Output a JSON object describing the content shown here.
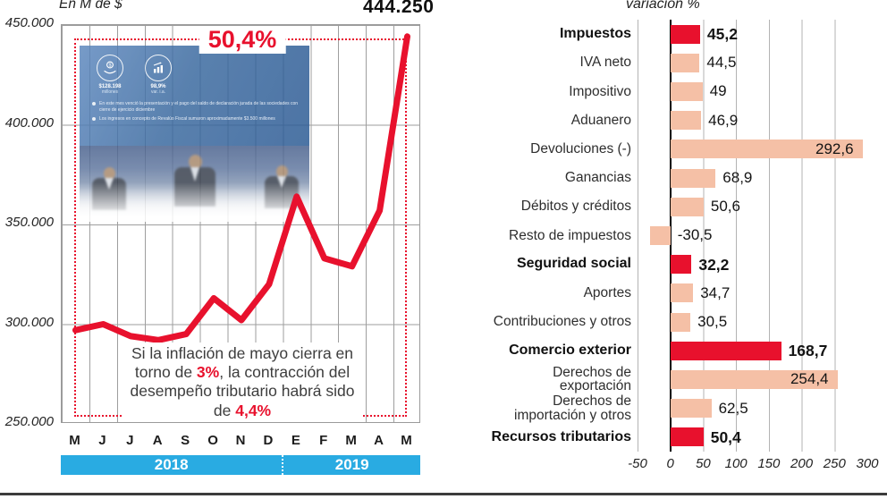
{
  "chart_data": [
    {
      "type": "line",
      "unit_label": "En M de $",
      "peak_value_label": "444.250",
      "growth_label": "50,4%",
      "x_months": [
        "M",
        "J",
        "J",
        "A",
        "S",
        "O",
        "N",
        "D",
        "E",
        "F",
        "M",
        "A",
        "M"
      ],
      "year_bands": [
        {
          "label": "2018",
          "span": 8
        },
        {
          "label": "2019",
          "span": 5
        }
      ],
      "values": [
        297000,
        300000,
        294000,
        292000,
        295000,
        313000,
        302000,
        320000,
        364000,
        333000,
        329000,
        357000,
        444250
      ],
      "ylim": [
        250000,
        450000
      ],
      "ytick_labels": [
        "450.000",
        "400.000",
        "350.000",
        "300.000",
        "250.000"
      ],
      "line_color": "#e8112d",
      "band_color": "#29abe2",
      "annotation_parts": [
        {
          "text": "Si la inflación de mayo cierra en",
          "br": true
        },
        {
          "text": "torno de "
        },
        {
          "text": "3%",
          "em": true
        },
        {
          "text": ", la contracción del",
          "br": true
        },
        {
          "text": "desempeño tributario habrá sido",
          "br": true
        },
        {
          "text": "de "
        },
        {
          "text": "4,4%",
          "em": true
        }
      ]
    },
    {
      "type": "bar",
      "title": "variación %",
      "categories": [
        "Impuestos",
        "IVA neto",
        "Impositivo",
        "Aduanero",
        "Devoluciones (-)",
        "Ganancias",
        "Débitos y créditos",
        "Resto de impuestos",
        "Seguridad social",
        "Aportes",
        "Contribuciones y otros",
        "Comercio exterior",
        "Derechos de exportación",
        "Derechos de importación y otros",
        "Recursos tributarios"
      ],
      "values": [
        45.2,
        44.5,
        49,
        46.9,
        292.6,
        68.9,
        50.6,
        -30.5,
        32.2,
        34.7,
        30.5,
        168.7,
        254.4,
        62.5,
        50.4
      ],
      "value_labels": [
        "45,2",
        "44,5",
        "49",
        "46,9",
        "292,6",
        "68,9",
        "50,6",
        "-30,5",
        "32,2",
        "34,7",
        "30,5",
        "168,7",
        "254,4",
        "62,5",
        "50,4"
      ],
      "emphasis": [
        1,
        0,
        0,
        0,
        0,
        0,
        0,
        0,
        1,
        0,
        0,
        1,
        0,
        0,
        1
      ],
      "label_inside": [
        0,
        0,
        0,
        0,
        1,
        0,
        0,
        0,
        0,
        0,
        0,
        0,
        1,
        0,
        0
      ],
      "xlim": [
        -50,
        300
      ],
      "xtick_labels": [
        "-50",
        "0",
        "50",
        "100",
        "150",
        "200",
        "250",
        "300"
      ],
      "bar_color_emphasis": "#e8112d",
      "bar_color_regular": "#f5c0a6"
    }
  ],
  "photo": {
    "stats": [
      {
        "icon": "coin-hand-icon",
        "value": "$128.198",
        "caption": "millones"
      },
      {
        "icon": "growth-chart-icon",
        "value": "98,9%",
        "caption": "var. i.a."
      }
    ],
    "bullets": [
      "En este mes venció la presentación y el pago del saldo de declaración jurada de las sociedades con cierre de ejercicio diciembre",
      "Los ingresos en concepto de Revalúo Fiscal sumaron aproximadamente $3.500 millones"
    ]
  }
}
